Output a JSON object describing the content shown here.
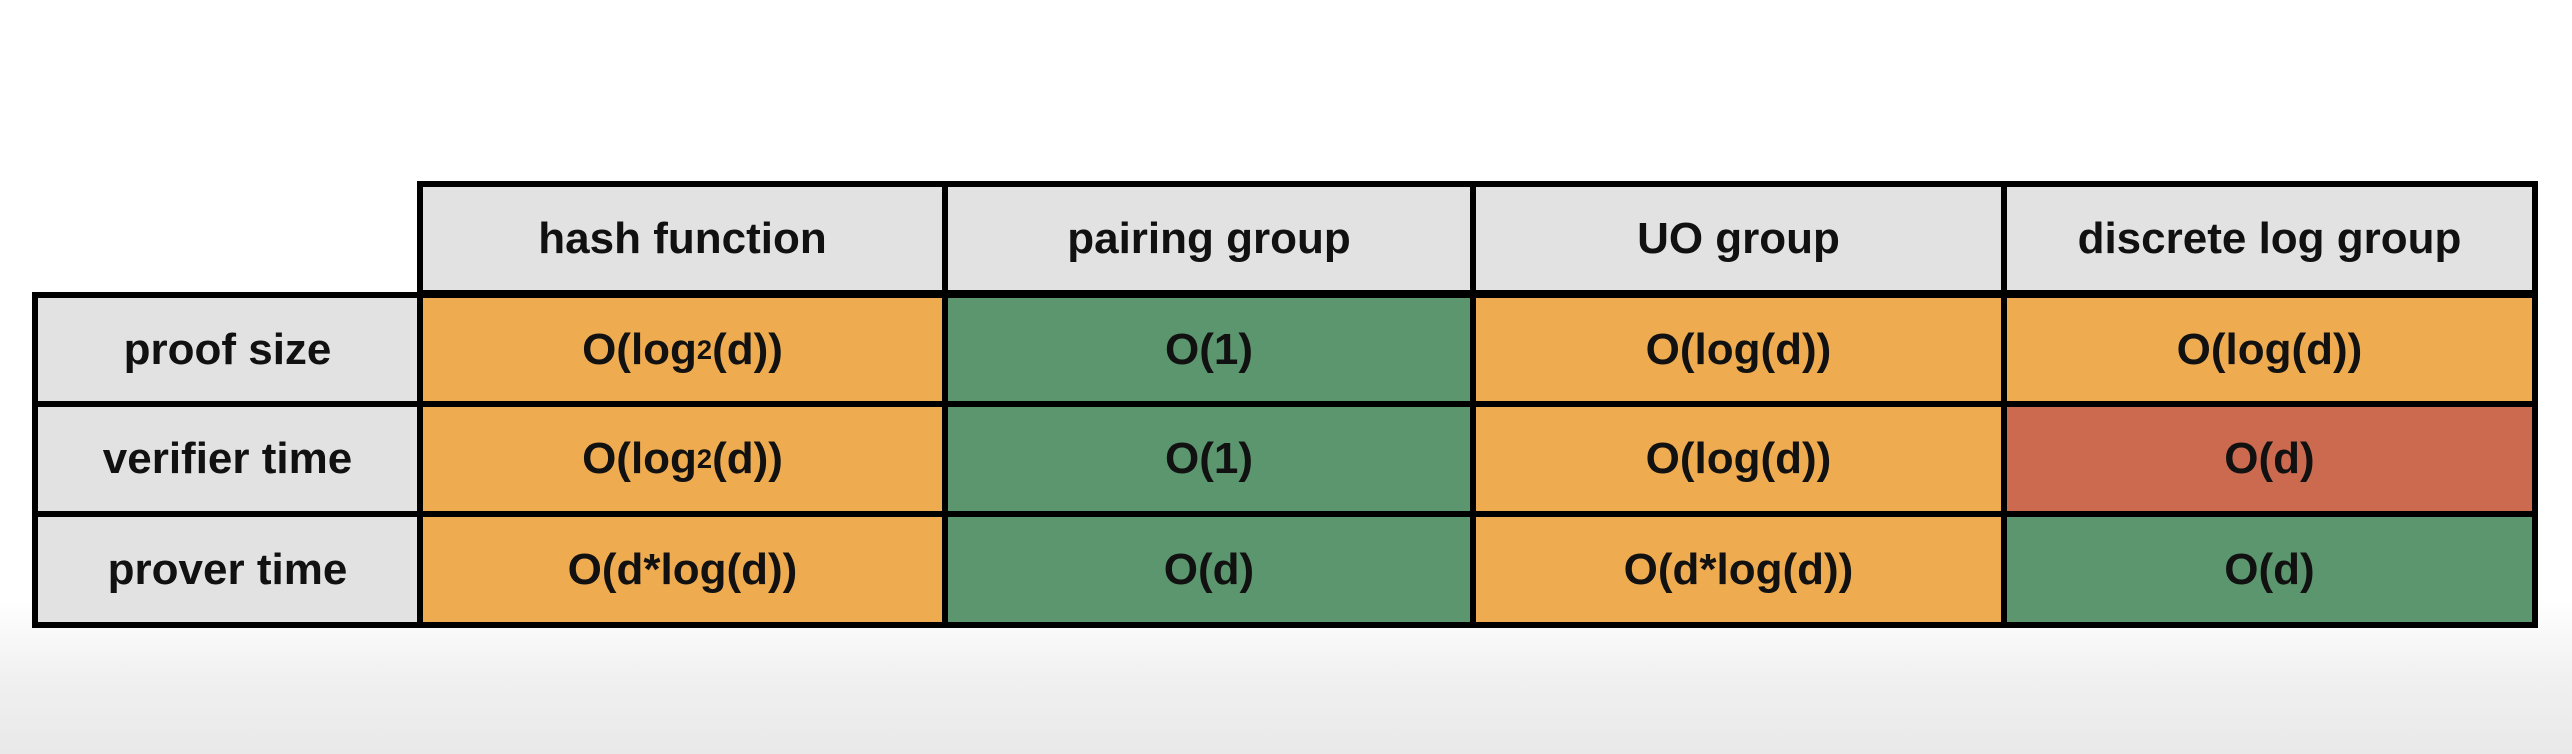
{
  "table": {
    "columns": [
      "hash function",
      "pairing group",
      "UO group",
      "discrete log group"
    ],
    "rows": [
      {
        "label": "proof size",
        "cells": [
          {
            "base": "O(log",
            "sup": "2",
            "tail": "(d))",
            "rating": "mid"
          },
          {
            "base": "O(1)",
            "sup": "",
            "tail": "",
            "rating": "good"
          },
          {
            "base": "O(log(d))",
            "sup": "",
            "tail": "",
            "rating": "mid"
          },
          {
            "base": "O(log(d))",
            "sup": "",
            "tail": "",
            "rating": "mid"
          }
        ]
      },
      {
        "label": "verifier time",
        "cells": [
          {
            "base": "O(log",
            "sup": "2",
            "tail": "(d))",
            "rating": "mid"
          },
          {
            "base": "O(1)",
            "sup": "",
            "tail": "",
            "rating": "good"
          },
          {
            "base": "O(log(d))",
            "sup": "",
            "tail": "",
            "rating": "mid"
          },
          {
            "base": "O(d)",
            "sup": "",
            "tail": "",
            "rating": "bad"
          }
        ]
      },
      {
        "label": "prover time",
        "cells": [
          {
            "base": "O(d*log(d))",
            "sup": "",
            "tail": "",
            "rating": "mid"
          },
          {
            "base": "O(d)",
            "sup": "",
            "tail": "",
            "rating": "good"
          },
          {
            "base": "O(d*log(d))",
            "sup": "",
            "tail": "",
            "rating": "mid"
          },
          {
            "base": "O(d)",
            "sup": "",
            "tail": "",
            "rating": "good"
          }
        ]
      }
    ]
  },
  "colors": {
    "good": "#5c966e",
    "mid": "#eeab50",
    "bad": "#cb6a4e",
    "header": "#e2e2e2",
    "border": "#000000"
  }
}
